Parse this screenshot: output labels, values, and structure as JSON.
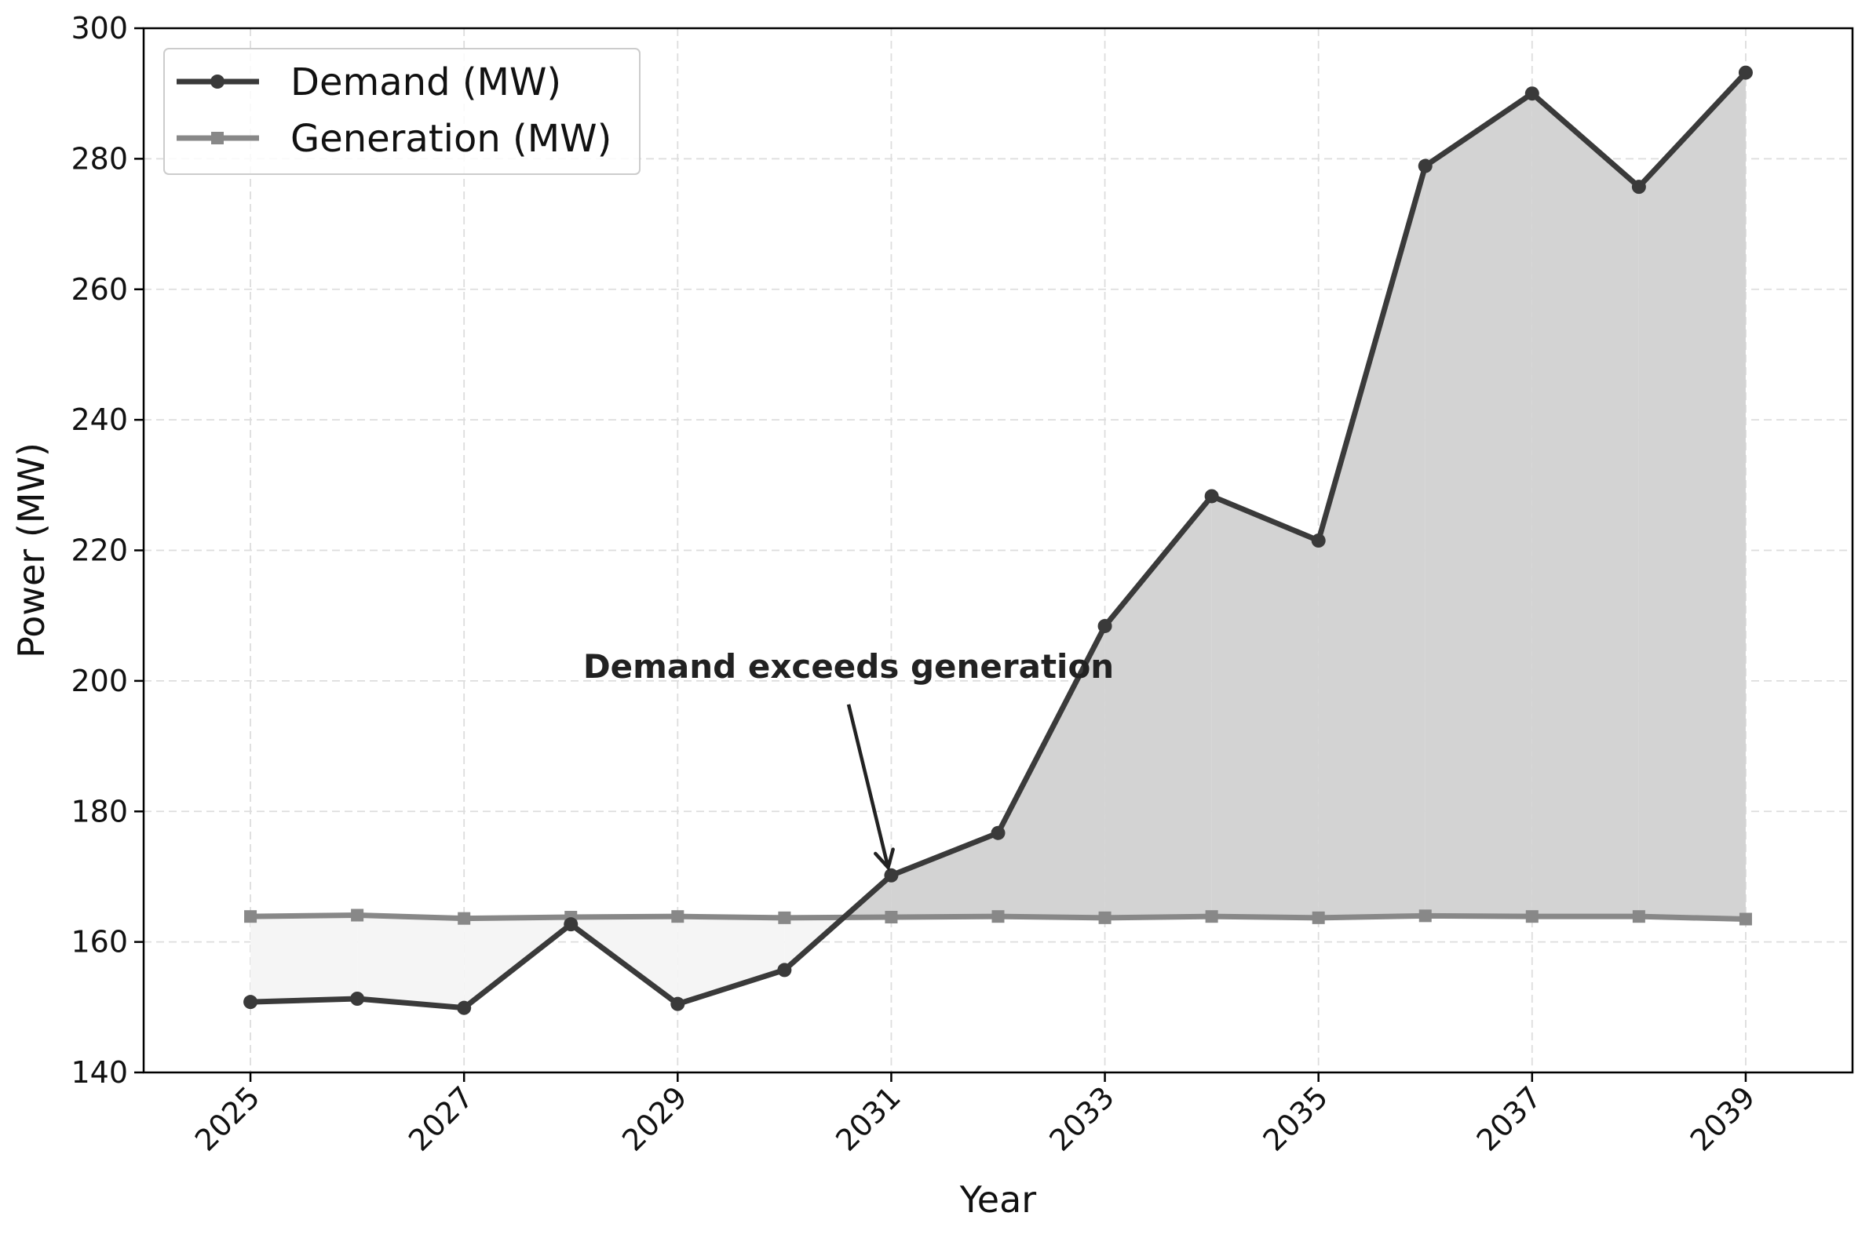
{
  "chart_data": {
    "type": "line",
    "xlabel": "Year",
    "ylabel": "Power (MW)",
    "xlim": [
      2024,
      2040
    ],
    "ylim": [
      140,
      300
    ],
    "xticks": [
      2025,
      2027,
      2029,
      2031,
      2033,
      2035,
      2037,
      2039
    ],
    "yticks": [
      140,
      160,
      180,
      200,
      220,
      240,
      260,
      280,
      300
    ],
    "grid": true,
    "legend_position": "top-left",
    "x": [
      2025,
      2026,
      2027,
      2028,
      2029,
      2030,
      2031,
      2032,
      2033,
      2034,
      2035,
      2036,
      2037,
      2038,
      2039
    ],
    "series": [
      {
        "name": "Demand (MW)",
        "color": "#3a3a3a",
        "marker": "circle",
        "values": [
          150.8,
          151.3,
          149.9,
          162.7,
          150.5,
          155.7,
          170.2,
          176.7,
          208.4,
          228.3,
          221.5,
          278.9,
          290.0,
          275.7,
          293.2
        ]
      },
      {
        "name": "Generation (MW)",
        "color": "#888888",
        "marker": "square",
        "values": [
          163.9,
          164.1,
          163.6,
          163.8,
          163.9,
          163.7,
          163.8,
          163.9,
          163.7,
          163.9,
          163.7,
          164.0,
          163.9,
          163.9,
          163.5
        ]
      }
    ],
    "fill_colors": {
      "demand_above": "#d3d3d3",
      "demand_below": "#f5f5f5"
    },
    "annotations": [
      {
        "text": "Demand exceeds generation",
        "text_x": 2030.6,
        "text_y": 200,
        "arrow_to_x": 2031,
        "arrow_to_y": 170.2
      }
    ]
  }
}
